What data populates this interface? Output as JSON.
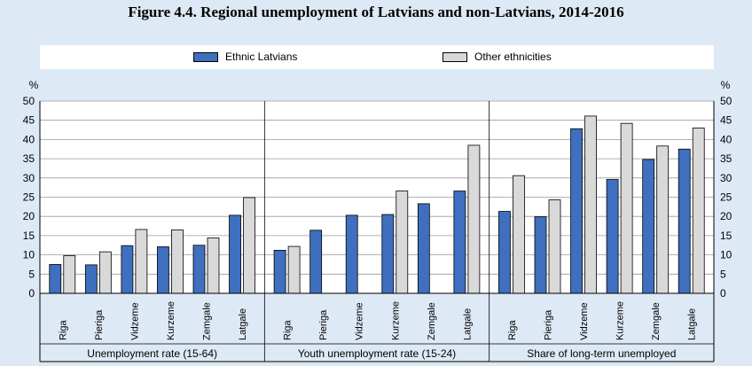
{
  "title": "Figure 4.4. Regional unemployment of Latvians and non-Latvians, 2014-2016",
  "legend": {
    "position": "top",
    "items": [
      {
        "label": "Ethnic Latvians",
        "color": "#3f6fbf"
      },
      {
        "label": "Other ethnicities",
        "color": "#d9d9d9"
      }
    ]
  },
  "chart_data": {
    "type": "bar",
    "ylabel_left": "%",
    "ylabel_right": "%",
    "ylim": [
      0,
      50
    ],
    "yticks": [
      0,
      5,
      10,
      15,
      20,
      25,
      30,
      35,
      40,
      45,
      50
    ],
    "grid": true,
    "series": [
      {
        "name": "Ethnic Latvians",
        "color": "#3f6fbf"
      },
      {
        "name": "Other ethnicities",
        "color": "#d9d9d9"
      }
    ],
    "panels": [
      {
        "label": "Unemployment rate (15-64)",
        "categories": [
          "Riga",
          "Pieriga",
          "Vidzeme",
          "Kurzeme",
          "Zemgale",
          "Latgale"
        ],
        "values": [
          [
            7.5,
            9.8
          ],
          [
            7.4,
            10.8
          ],
          [
            12.4,
            16.6
          ],
          [
            12.1,
            16.5
          ],
          [
            12.5,
            14.4
          ],
          [
            20.3,
            24.9
          ]
        ]
      },
      {
        "label": "Youth unemployment rate (15-24)",
        "categories": [
          "Riga",
          "Pieriga",
          "Vidzeme",
          "Kurzeme",
          "Zemgale",
          "Latgale"
        ],
        "values": [
          [
            11.2,
            12.2
          ],
          [
            16.4,
            null
          ],
          [
            20.3,
            null
          ],
          [
            20.5,
            26.6
          ],
          [
            23.3,
            null
          ],
          [
            26.6,
            38.5
          ]
        ]
      },
      {
        "label": "Share of long-term unemployed",
        "categories": [
          "Riga",
          "Pieriga",
          "Vidzeme",
          "Kurzeme",
          "Zemgale",
          "Latgale"
        ],
        "values": [
          [
            21.3,
            30.6
          ],
          [
            19.9,
            24.3
          ],
          [
            42.8,
            46.1
          ],
          [
            29.6,
            44.2
          ],
          [
            34.8,
            38.3
          ],
          [
            37.5,
            43.0
          ]
        ]
      }
    ]
  }
}
